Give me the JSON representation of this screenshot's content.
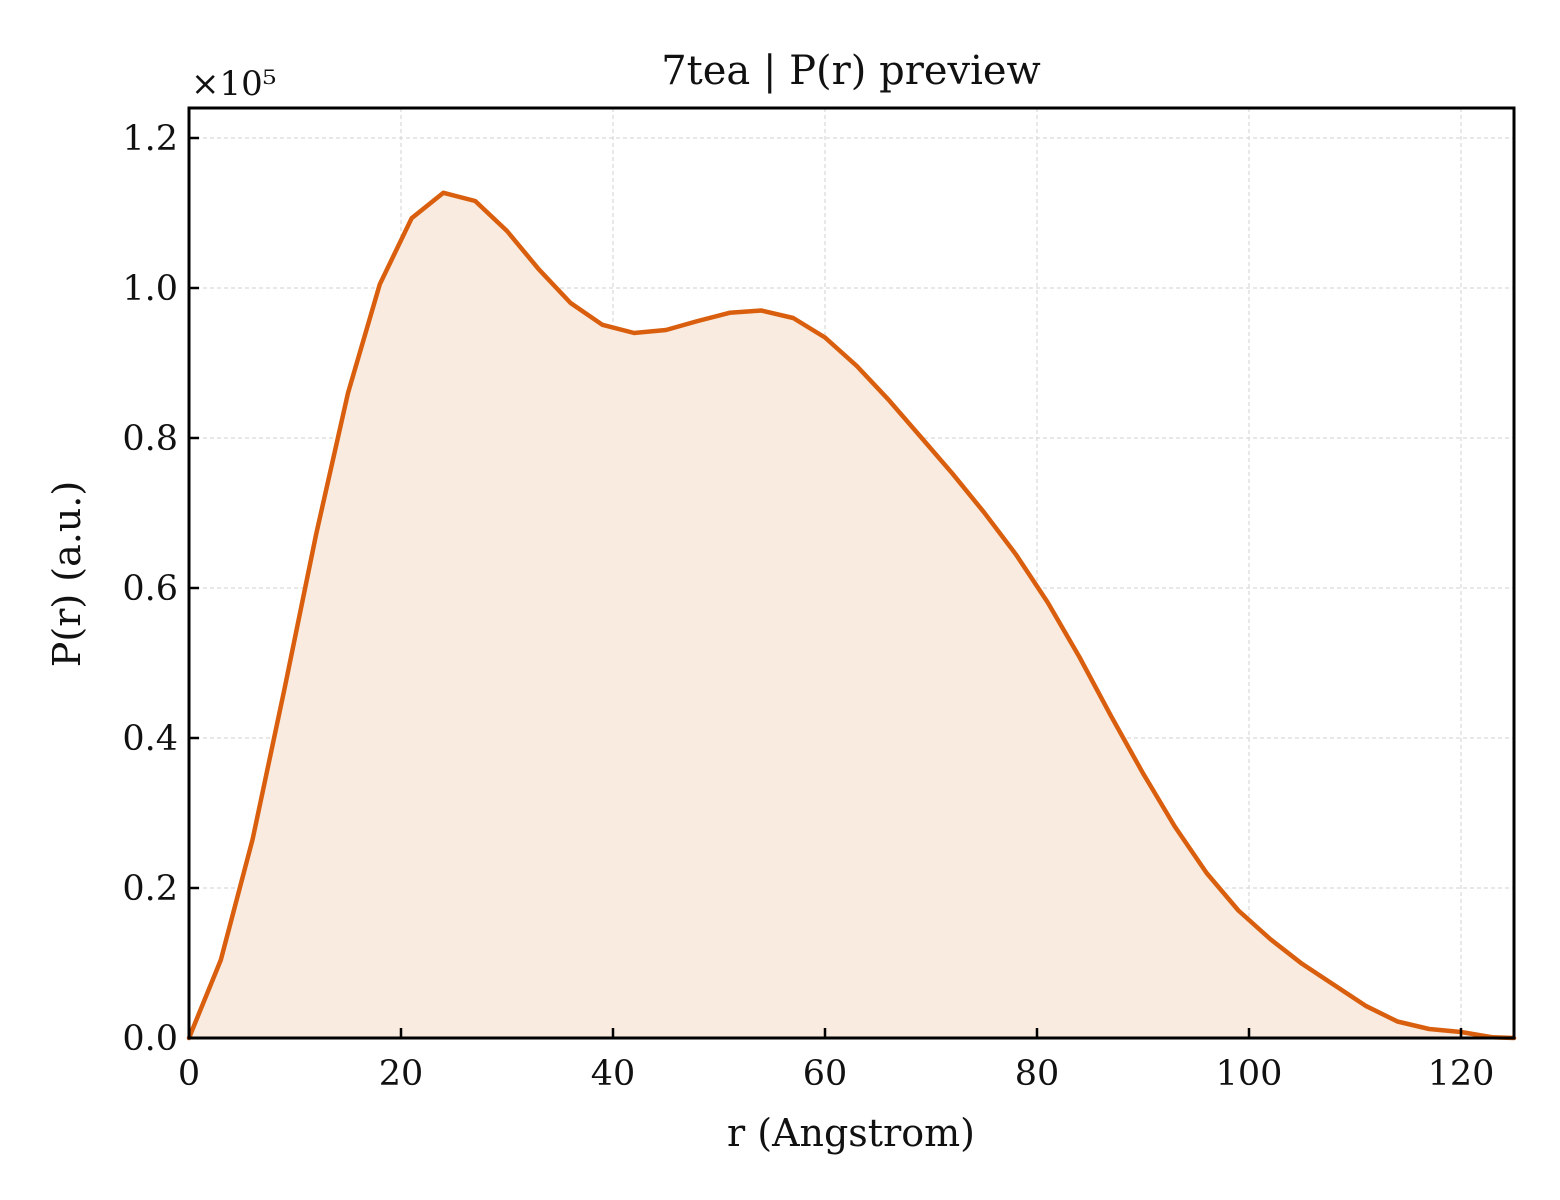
{
  "chart_data": {
    "type": "area",
    "title": "7tea | P(r) preview",
    "xlabel": "r (Angstrom)",
    "ylabel": "P(r) (a.u.)",
    "y_scale_label": "×10⁵",
    "y_multiplier": 100000,
    "xlim": [
      0,
      125
    ],
    "ylim": [
      0,
      1.24
    ],
    "x_ticks": [
      0,
      20,
      40,
      60,
      80,
      100,
      120
    ],
    "x_tick_labels": [
      "0",
      "20",
      "40",
      "60",
      "80",
      "100",
      "120"
    ],
    "y_ticks": [
      0,
      0.2,
      0.4,
      0.6,
      0.8,
      1.0,
      1.2
    ],
    "y_tick_labels": [
      "0.0",
      "0.2",
      "0.4",
      "0.6",
      "0.8",
      "1.0",
      "1.2"
    ],
    "grid": true,
    "line_color": "#d95f0e",
    "fill_color": "#f9ebe0",
    "series": [
      {
        "x": [
          0,
          3,
          6,
          9,
          12,
          15,
          18,
          21,
          24,
          27,
          30,
          33,
          36,
          39,
          42,
          45,
          48,
          51,
          54,
          57,
          60,
          63,
          66,
          69,
          72,
          75,
          78,
          81,
          84,
          87,
          90,
          93,
          96,
          99,
          102,
          105,
          108,
          111,
          114,
          117,
          120,
          123,
          125
        ],
        "values": [
          0.0,
          0.104,
          0.265,
          0.465,
          0.672,
          0.86,
          1.005,
          1.093,
          1.127,
          1.116,
          1.076,
          1.025,
          0.98,
          0.951,
          0.94,
          0.944,
          0.956,
          0.967,
          0.97,
          0.96,
          0.934,
          0.896,
          0.851,
          0.802,
          0.753,
          0.701,
          0.645,
          0.581,
          0.508,
          0.429,
          0.353,
          0.282,
          0.22,
          0.17,
          0.132,
          0.099,
          0.071,
          0.043,
          0.022,
          0.012,
          0.008,
          0.001,
          0.0
        ]
      }
    ]
  }
}
